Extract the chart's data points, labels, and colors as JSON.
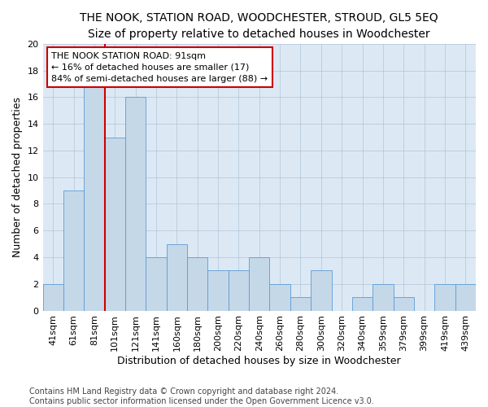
{
  "title": "THE NOOK, STATION ROAD, WOODCHESTER, STROUD, GL5 5EQ",
  "subtitle": "Size of property relative to detached houses in Woodchester",
  "xlabel": "Distribution of detached houses by size in Woodchester",
  "ylabel": "Number of detached properties",
  "categories": [
    "41sqm",
    "61sqm",
    "81sqm",
    "101sqm",
    "121sqm",
    "141sqm",
    "160sqm",
    "180sqm",
    "200sqm",
    "220sqm",
    "240sqm",
    "260sqm",
    "280sqm",
    "300sqm",
    "320sqm",
    "340sqm",
    "359sqm",
    "379sqm",
    "399sqm",
    "419sqm",
    "439sqm"
  ],
  "values": [
    2,
    9,
    18,
    13,
    16,
    4,
    5,
    4,
    3,
    3,
    4,
    2,
    1,
    3,
    0,
    1,
    2,
    1,
    0,
    2,
    2
  ],
  "bar_color": "#c5d8e8",
  "bar_edge_color": "#5b9bd5",
  "subject_line_index": 2,
  "annotation_text_line1": "THE NOOK STATION ROAD: 91sqm",
  "annotation_text_line2": "← 16% of detached houses are smaller (17)",
  "annotation_text_line3": "84% of semi-detached houses are larger (88) →",
  "annotation_box_color": "#ffffff",
  "annotation_box_edge_color": "#cc0000",
  "subject_line_color": "#cc0000",
  "ylim": [
    0,
    20
  ],
  "yticks": [
    0,
    2,
    4,
    6,
    8,
    10,
    12,
    14,
    16,
    18,
    20
  ],
  "background_color": "#ffffff",
  "axes_background": "#dce9f5",
  "grid_color": "#b0c4d8",
  "footer": "Contains HM Land Registry data © Crown copyright and database right 2024.\nContains public sector information licensed under the Open Government Licence v3.0.",
  "title_fontsize": 10,
  "xlabel_fontsize": 9,
  "ylabel_fontsize": 9,
  "tick_fontsize": 8,
  "annotation_fontsize": 8,
  "footer_fontsize": 7
}
